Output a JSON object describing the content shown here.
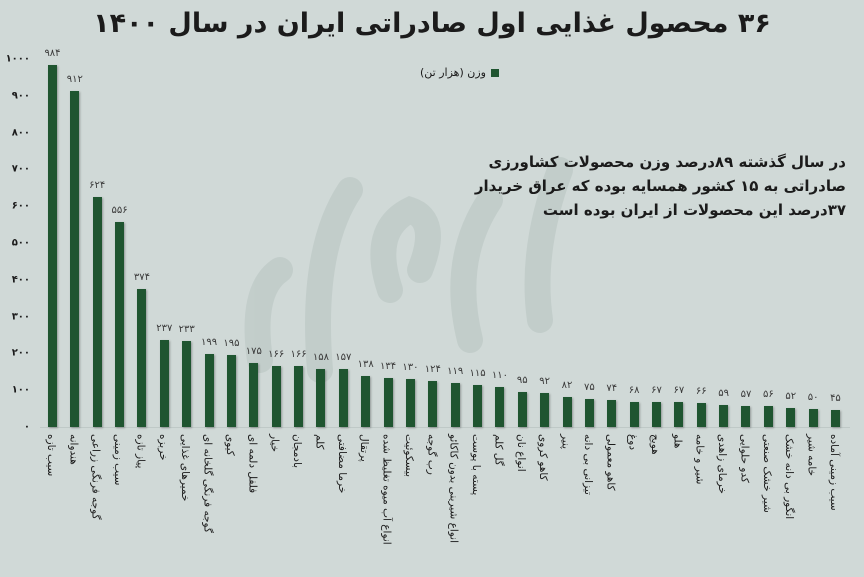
{
  "title": "۳۶ محصول غذایی اول صادراتی ایران در سال ۱۴۰۰",
  "legend": {
    "label": "وزن (هزار تن)",
    "color": "#1f5530"
  },
  "note": {
    "lines": [
      "در سال گذشته ۸۹درصد وزن محصولات کشاورزی",
      "صادراتی به ۱۵ کشور همسایه بوده که عراق خریدار",
      "۳۷درصد این محصولات از ایران بوده است"
    ]
  },
  "watermark": "فردای اقتصاد",
  "colors": {
    "background": "#d0d9d7",
    "bar": "#1f5530"
  },
  "chart_data": {
    "type": "bar",
    "title": "۳۶ محصول غذایی اول صادراتی ایران در سال ۱۴۰۰",
    "xlabel": "",
    "ylabel": "وزن (هزار تن)",
    "ylim": [
      0,
      1000
    ],
    "yticks": [
      0,
      100,
      200,
      300,
      400,
      500,
      600,
      700,
      800,
      900,
      1000
    ],
    "ytick_labels": [
      "۰",
      "۱۰۰",
      "۲۰۰",
      "۳۰۰",
      "۴۰۰",
      "۵۰۰",
      "۶۰۰",
      "۷۰۰",
      "۸۰۰",
      "۹۰۰",
      "۱۰۰۰"
    ],
    "grid": false,
    "legend_position": "top-center",
    "categories": [
      "سیب تازه",
      "هندوانه",
      "گوجه فرنگی زراعی",
      "سیب زمینی",
      "پیاز تازه",
      "خربزه",
      "خمیرهای غذایی",
      "گوجه فرنگی گلخانه ای",
      "کیوی",
      "فلفل دلمه ای",
      "خیار",
      "بادمجان",
      "کلم",
      "خرما مضافتی",
      "پرتقال",
      "انواع آب میوه تغلیظ شده",
      "بیسکوئیت",
      "رب گوجه",
      "انواع شیرینی بدون کاکائو",
      "پسته با پوست",
      "گل کلم",
      "انواع نان",
      "کاهو کروی",
      "پنیر",
      "تیزانی بی دانه",
      "کاهو معمولی",
      "دوغ",
      "هویج",
      "هلو",
      "شیر و خامه",
      "خرمای زاهدی",
      "کدو حلوایی",
      "شیر خشک صنعتی",
      "انگور بی دانه خشک",
      "خامه شیر",
      "سیب زمینی آماده"
    ],
    "values": [
      984,
      912,
      624,
      556,
      374,
      237,
      233,
      199,
      195,
      175,
      166,
      166,
      158,
      157,
      138,
      134,
      130,
      124,
      119,
      115,
      110,
      95,
      92,
      82,
      75,
      74,
      68,
      67,
      67,
      66,
      59,
      57,
      56,
      52,
      50,
      45
    ],
    "value_labels": [
      "۹۸۴",
      "۹۱۲",
      "۶۲۴",
      "۵۵۶",
      "۳۷۴",
      "۲۳۷",
      "۲۳۳",
      "۱۹۹",
      "۱۹۵",
      "۱۷۵",
      "۱۶۶",
      "۱۶۶",
      "۱۵۸",
      "۱۵۷",
      "۱۳۸",
      "۱۳۴",
      "۱۳۰",
      "۱۲۴",
      "۱۱۹",
      "۱۱۵",
      "۱۱۰",
      "۹۵",
      "۹۲",
      "۸۲",
      "۷۵",
      "۷۴",
      "۶۸",
      "۶۷",
      "۶۷",
      "۶۶",
      "۵۹",
      "۵۷",
      "۵۶",
      "۵۲",
      "۵۰",
      "۴۵"
    ]
  }
}
